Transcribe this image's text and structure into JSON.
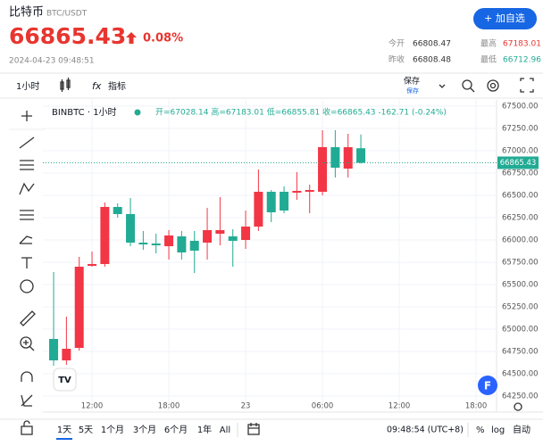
{
  "header": {
    "title": "比特币",
    "pair": "BTC/USDT",
    "price": "66865.43",
    "change": "0.08%",
    "datetime": "2024-04-23 09:48:51",
    "button": "+ 加自选"
  },
  "stats": [
    {
      "label": "今开",
      "value": "66808.47"
    },
    {
      "label": "最高",
      "value": "67183.01"
    },
    {
      "label": "昨收",
      "value": "66808.48"
    },
    {
      "label": "最低",
      "value": "66712.96"
    }
  ],
  "toolbar": {
    "interval": "1小时",
    "indicators": "指标",
    "save": "保存",
    "save_sub": "保存"
  },
  "chart_data": {
    "type": "candlestick",
    "legend_symbol": "BINBTC · 1小时",
    "legend_values": "开=67028.14 高=67183.01 低=66855.81 收=66865.43 -162.71 (-0.24%)",
    "up_color": "#f23645",
    "down_color": "#22ab94",
    "open": [
      64890,
      64650,
      64790,
      65710,
      65730,
      66370,
      66290,
      65970,
      65960,
      65930,
      66040,
      65990,
      65970,
      66070,
      66040,
      66000,
      66150,
      66540,
      66540,
      66530,
      66540,
      66540,
      67040,
      66800,
      67028.14
    ],
    "high": [
      65640,
      65140,
      65810,
      65870,
      66420,
      66410,
      66470,
      66100,
      66070,
      66110,
      66100,
      66100,
      66360,
      66480,
      66120,
      66330,
      66790,
      66560,
      66600,
      66760,
      66620,
      67230,
      67230,
      67190,
      67183.01
    ],
    "low": [
      64590,
      64600,
      64760,
      65700,
      65700,
      66250,
      65930,
      65890,
      65850,
      65780,
      65780,
      65630,
      65780,
      65940,
      65700,
      65900,
      66100,
      66200,
      66300,
      66450,
      66300,
      66500,
      66700,
      66700,
      66855.81
    ],
    "close": [
      64650,
      64780,
      65700,
      65730,
      66370,
      66290,
      65970,
      65950,
      65940,
      66050,
      65860,
      65880,
      66110,
      66110,
      65990,
      66150,
      66540,
      66310,
      66330,
      66550,
      66560,
      67040,
      66810,
      67040,
      66865.43
    ],
    "ylim": [
      64070,
      67570
    ],
    "yticks": [
      {
        "value": 64250,
        "label": "64250.00"
      },
      {
        "value": 64500,
        "label": "64500.00"
      },
      {
        "value": 64750,
        "label": "64750.00"
      },
      {
        "value": 65000,
        "label": "65000.00"
      },
      {
        "value": 65250,
        "label": "65250.00"
      },
      {
        "value": 65500,
        "label": "65500.00"
      },
      {
        "value": 65750,
        "label": "65750.00"
      },
      {
        "value": 66000,
        "label": "66000.00"
      },
      {
        "value": 66250,
        "label": "66250.00"
      },
      {
        "value": 66500,
        "label": "66500.00"
      },
      {
        "value": 66750,
        "label": "66750.00"
      },
      {
        "value": 67000,
        "label": "67000.00"
      },
      {
        "value": 67250,
        "label": "67250.00"
      },
      {
        "value": 67500,
        "label": "67500.00"
      }
    ],
    "xlim": [
      -0.84,
      34.6
    ],
    "xticks": [
      {
        "value": 3,
        "label": "12:00"
      },
      {
        "value": 9,
        "label": "18:00"
      },
      {
        "value": 15,
        "label": "23"
      },
      {
        "value": 21,
        "label": "06:00"
      },
      {
        "value": 27,
        "label": "12:00"
      },
      {
        "value": 33,
        "label": "18:00"
      }
    ],
    "grid": true
  },
  "bottom_bar": {
    "ranges": [
      "1天",
      "5天",
      "1个月",
      "3个月",
      "6个月",
      "1年",
      "All"
    ],
    "time": "09:48:54 (UTC+8)",
    "percent": "%",
    "log": "log",
    "auto": "自动"
  }
}
